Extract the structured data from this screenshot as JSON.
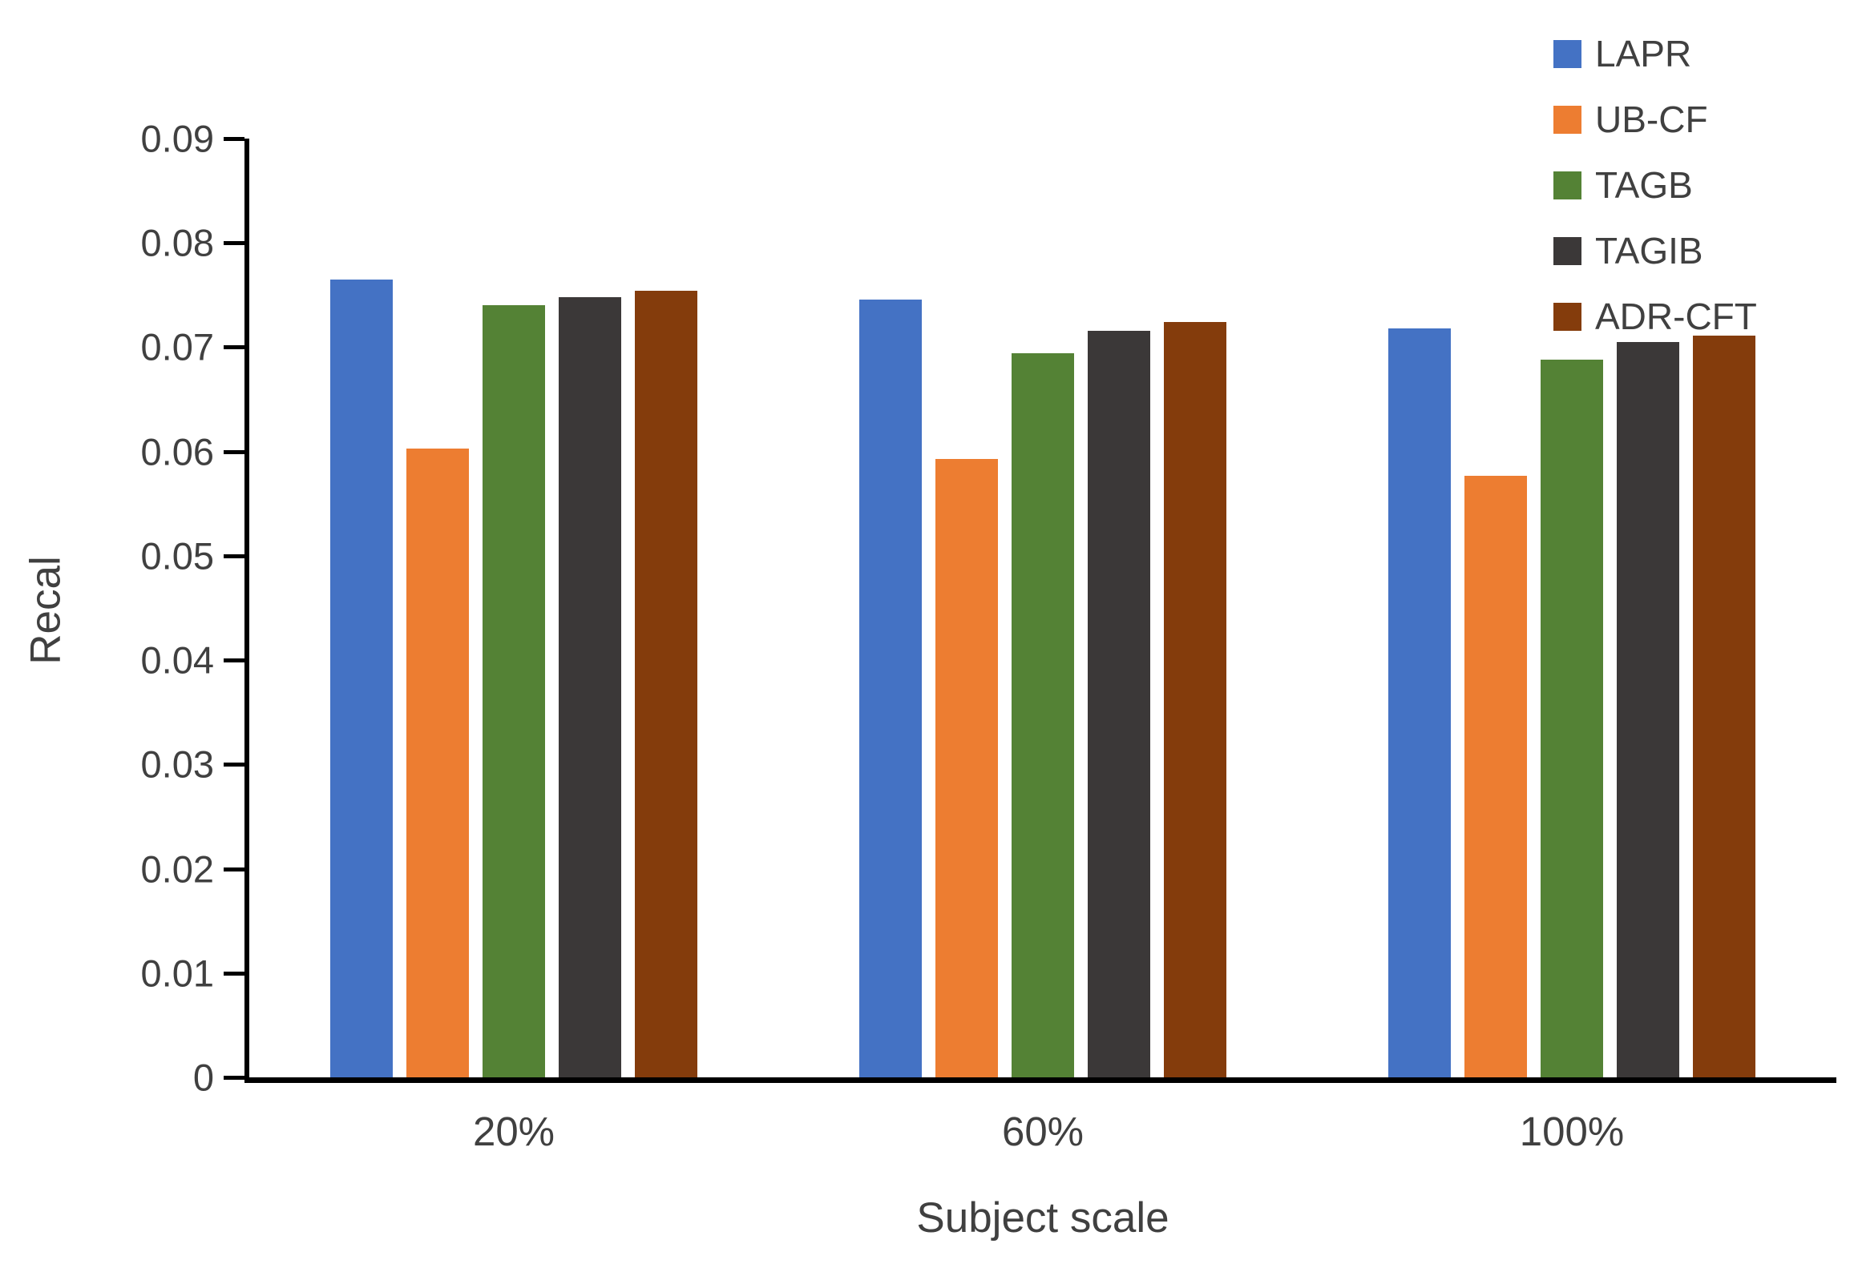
{
  "chart_data": {
    "type": "bar",
    "title": "",
    "xlabel": "Subject scale",
    "ylabel": "Recal",
    "categories": [
      "20%",
      "60%",
      "100%"
    ],
    "series": [
      {
        "name": "LAPR",
        "color": "#4472C4",
        "values": [
          0.0765,
          0.0746,
          0.0718
        ]
      },
      {
        "name": "UB-CF",
        "color": "#ED7D31",
        "values": [
          0.0603,
          0.0593,
          0.0577
        ]
      },
      {
        "name": "TAGB",
        "color": "#548235",
        "values": [
          0.074,
          0.0694,
          0.0688
        ]
      },
      {
        "name": "TAGIB",
        "color": "#3B3838",
        "values": [
          0.0748,
          0.0716,
          0.0705
        ]
      },
      {
        "name": "ADR-CFT",
        "color": "#843C0C",
        "values": [
          0.0754,
          0.0724,
          0.0711
        ]
      }
    ],
    "ylim": [
      0,
      0.09
    ],
    "ytick_step": 0.01,
    "ytick_labels": [
      "0",
      "0.01",
      "0.02",
      "0.03",
      "0.04",
      "0.05",
      "0.06",
      "0.07",
      "0.08",
      "0.09"
    ],
    "legend_position": "top-right",
    "grid": false,
    "axis_color": "#000000",
    "text_color": "#404040"
  }
}
